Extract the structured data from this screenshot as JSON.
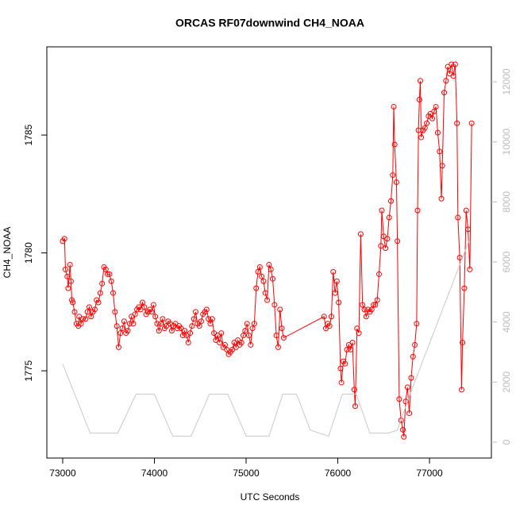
{
  "chart_data": {
    "type": "line",
    "title": "ORCAS RF07downwind CH4_NOAA",
    "x_label": "UTC Seconds",
    "y_label": "CH4_NOAA",
    "xlim": [
      72827,
      77675
    ],
    "ylim": [
      1771.3,
      1788.74
    ],
    "y2lim": [
      -529,
      13163
    ],
    "xticks": [
      73000,
      74000,
      75000,
      76000,
      77000
    ],
    "yticks": [
      1775,
      1780,
      1785
    ],
    "y2ticks": [
      0,
      2000,
      4000,
      6000,
      8000,
      10000,
      12000
    ],
    "series": [
      {
        "color": "#ff0000",
        "marker": "circle",
        "x": [
          73000,
          73020,
          73030,
          73050,
          73060,
          73080,
          73090,
          73100,
          73110,
          73130,
          73150,
          73170,
          73180,
          73200,
          73220,
          73250,
          73270,
          73290,
          73310,
          73330,
          73350,
          73370,
          73390,
          73410,
          73430,
          73450,
          73470,
          73490,
          73510,
          73530,
          73550,
          73570,
          73590,
          73610,
          73630,
          73650,
          73670,
          73690,
          73710,
          73730,
          73750,
          73770,
          73790,
          73810,
          73830,
          73850,
          73870,
          73890,
          73910,
          73930,
          73950,
          73970,
          73990,
          74010,
          74030,
          74050,
          74070,
          74090,
          74110,
          74130,
          74150,
          74170,
          74190,
          74210,
          74230,
          74250,
          74270,
          74290,
          74310,
          74330,
          74350,
          74370,
          74390,
          74410,
          74430,
          74450,
          74470,
          74490,
          74510,
          74530,
          74550,
          74570,
          74590,
          74610,
          74630,
          74650,
          74670,
          74690,
          74710,
          74730,
          74750,
          74770,
          74790,
          74810,
          74830,
          74850,
          74870,
          74890,
          74910,
          74930,
          74950,
          74970,
          74990,
          75010,
          75030,
          75050,
          75070,
          75090,
          75110,
          75130,
          75150,
          75170,
          75190,
          75210,
          75230,
          75250,
          75270,
          75290,
          75310,
          75330,
          75350,
          75370,
          75390,
          75410,
          75850,
          75870,
          75890,
          75910,
          75930,
          75950,
          75970,
          75990,
          76010,
          76030,
          76040,
          76060,
          76080,
          76100,
          76120,
          76140,
          76160,
          76180,
          76190,
          76210,
          76230,
          76250,
          76270,
          76290,
          76310,
          76330,
          76350,
          76370,
          76390,
          76410,
          76430,
          76450,
          76470,
          76480,
          76500,
          76520,
          76540,
          76560,
          76580,
          76600,
          76610,
          76620,
          76640,
          76650,
          76670,
          76690,
          76710,
          76720,
          76740,
          76760,
          76780,
          76800,
          76820,
          76840,
          76860,
          76870,
          76880,
          76890,
          76900,
          76910,
          76930,
          76950,
          76970,
          76990,
          77010,
          77030,
          77050,
          77070,
          77090,
          77110,
          77130,
          77140,
          77160,
          77180,
          77200,
          77220,
          77240,
          77260,
          77280,
          77300,
          77310,
          77330,
          77350,
          77360,
          77380,
          77400,
          77420,
          77440,
          77460
        ],
        "values": [
          1780.5,
          1780.6,
          1779.3,
          1779.0,
          1778.5,
          1779.5,
          1778.8,
          1778.0,
          1777.9,
          1777.5,
          1777.0,
          1776.9,
          1777.3,
          1777.0,
          1777.2,
          1777.2,
          1777.5,
          1777.7,
          1777.3,
          1777.5,
          1777.6,
          1778.0,
          1777.9,
          1778.3,
          1778.7,
          1779.4,
          1779.3,
          1779.1,
          1779.1,
          1778.8,
          1778.3,
          1777.5,
          1776.9,
          1776.0,
          1776.6,
          1776.8,
          1777.1,
          1776.6,
          1776.7,
          1777.0,
          1777.3,
          1777.0,
          1777.4,
          1777.6,
          1777.7,
          1777.6,
          1777.9,
          1777.7,
          1777.4,
          1777.5,
          1777.6,
          1777.5,
          1777.8,
          1777.3,
          1777.0,
          1776.7,
          1777.0,
          1777.2,
          1776.8,
          1776.9,
          1777.1,
          1777.0,
          1776.7,
          1776.9,
          1777.0,
          1776.8,
          1776.9,
          1776.8,
          1776.5,
          1776.7,
          1776.5,
          1776.2,
          1776.6,
          1776.9,
          1777.2,
          1777.5,
          1777.0,
          1776.9,
          1777.1,
          1777.4,
          1777.5,
          1777.6,
          1777.2,
          1777.0,
          1777.2,
          1776.6,
          1776.3,
          1776.5,
          1776.2,
          1776.6,
          1776.0,
          1776.1,
          1775.9,
          1775.7,
          1775.8,
          1775.9,
          1776.2,
          1776.0,
          1776.3,
          1776.1,
          1776.2,
          1776.5,
          1776.7,
          1777.0,
          1776.5,
          1776.1,
          1776.8,
          1777.0,
          1778.5,
          1779.2,
          1779.4,
          1779.0,
          1778.8,
          1778.3,
          1778.0,
          1779.5,
          1779.3,
          1778.9,
          1777.8,
          1776.5,
          1776.0,
          1777.6,
          1776.8,
          1776.4,
          1777.3,
          1776.8,
          1777.0,
          1776.9,
          1777.3,
          1779.2,
          1778.3,
          1778.8,
          1777.9,
          1775.1,
          1774.5,
          1775.4,
          1775.3,
          1775.9,
          1776.1,
          1775.9,
          1776.2,
          1774.2,
          1773.5,
          1776.8,
          1776.6,
          1780.8,
          1777.8,
          1777.6,
          1777.3,
          1777.6,
          1777.5,
          1777.6,
          1777.8,
          1777.8,
          1778.0,
          1779.1,
          1780.3,
          1781.8,
          1780.7,
          1780.2,
          1780.6,
          1781.5,
          1782.2,
          1783.3,
          1786.2,
          1784.6,
          1783.0,
          1780.5,
          1773.8,
          1772.9,
          1772.5,
          1772.2,
          1773.7,
          1774.3,
          1773.2,
          1774.7,
          1775.6,
          1776.1,
          1777.0,
          1781.8,
          1785.2,
          1786.5,
          1787.3,
          1784.9,
          1785.2,
          1785.3,
          1785.5,
          1785.8,
          1785.9,
          1785.7,
          1786.0,
          1786.2,
          1785.1,
          1784.3,
          1782.3,
          1783.7,
          1786.8,
          1787.3,
          1787.9,
          1787.6,
          1788.0,
          1787.5,
          1788.0,
          1785.5,
          1781.5,
          1779.8,
          1774.2,
          1776.2,
          1778.5,
          1781.8,
          1781.0,
          1779.3,
          1785.5
        ]
      },
      {
        "color": "#c8c8c8",
        "axis": "y2",
        "x": [
          73000,
          73300,
          73600,
          73800,
          74000,
          74200,
          74400,
          74600,
          74800,
          75000,
          75250,
          75400,
          75550,
          75700,
          75900,
          76050,
          76200,
          76350,
          76550,
          76650,
          76800,
          77430
        ],
        "values": [
          2600,
          300,
          300,
          1600,
          1600,
          200,
          200,
          1600,
          1600,
          200,
          200,
          1600,
          1600,
          400,
          200,
          1600,
          1600,
          300,
          300,
          400,
          1700,
          6700
        ]
      }
    ]
  }
}
